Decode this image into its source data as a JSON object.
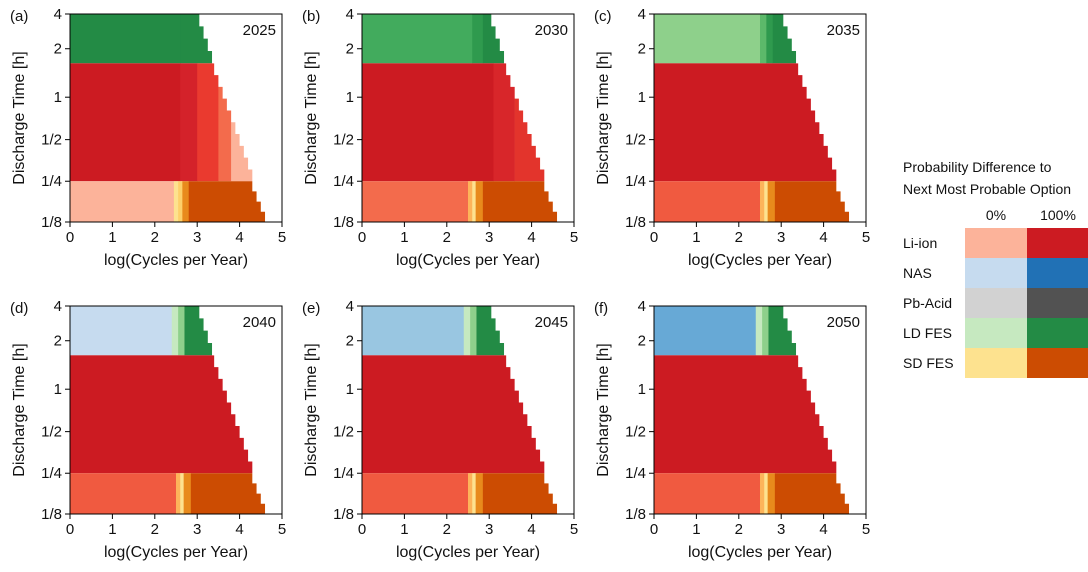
{
  "colors": {
    "li_ion_low": "#fcb39a",
    "li_ion_mid": "#f36b4c",
    "li_ion_high": "#cc1b22",
    "nas_low": "#c6dbef",
    "nas_mid": "#99c6e1",
    "nas_mid2": "#67a9d6",
    "nas_high": "#2171b5",
    "pb_low": "#d2d2d2",
    "pb_high": "#525252",
    "ld_low": "#c6e9c0",
    "ld_mid": "#8ed08b",
    "ld_mid2": "#42ab5d",
    "ld_high": "#238b45",
    "sd_low": "#fde28f",
    "sd_high": "#cc4c02"
  },
  "chart_data": [
    {
      "panel": "(a)",
      "year": "2025",
      "type": "heatmap",
      "xlabel": "log(Cycles per Year)",
      "ylabel": "Discharge Time [h]",
      "xlim": [
        0,
        5
      ],
      "xticks": [
        "0",
        "1",
        "2",
        "3",
        "4",
        "5"
      ],
      "yticks": [
        "4",
        "2",
        "1",
        "1/2",
        "1/4",
        "1/8"
      ],
      "rows": [
        {
          "technology": "LD FES",
          "range_h": "2-4",
          "x_end": [
            3.05,
            3.15,
            3.25,
            3.35
          ],
          "segments": [
            {
              "x0": 0,
              "x1": 2.6,
              "color": "#238b45"
            },
            {
              "x0": 2.6,
              "x1": 3.35,
              "color": "#238b45"
            }
          ]
        },
        {
          "technology": "Li-ion",
          "range_h": "1/4-2",
          "x_end": [
            3.4,
            3.5,
            3.6,
            3.7,
            3.8,
            3.9,
            4.0,
            4.1,
            4.2,
            4.3
          ],
          "segments": [
            {
              "x0": 0,
              "x1": 2.6,
              "color": "#cc1b22"
            },
            {
              "x0": 2.6,
              "x1": 3.0,
              "color": "#d4222a"
            },
            {
              "x0": 3.0,
              "x1": 3.5,
              "color": "#ea3a2f"
            },
            {
              "x0": 3.5,
              "x1": 3.8,
              "color": "#f36b4c"
            },
            {
              "x0": 3.8,
              "x1": 4.3,
              "color": "#fcb39a"
            }
          ]
        },
        {
          "technology": "Li-ion / SD FES",
          "range_h": "1/8-1/4",
          "x_end": [
            4.3,
            4.4,
            4.5,
            4.6
          ],
          "segments": [
            {
              "x0": 0,
              "x1": 2.45,
              "color": "#fcb39a"
            },
            {
              "x0": 2.45,
              "x1": 2.55,
              "color": "#fde28f"
            },
            {
              "x0": 2.55,
              "x1": 2.65,
              "color": "#fdd06a"
            },
            {
              "x0": 2.65,
              "x1": 2.8,
              "color": "#e88a1c"
            },
            {
              "x0": 2.8,
              "x1": 4.6,
              "color": "#cc4c02"
            }
          ]
        }
      ]
    },
    {
      "panel": "(b)",
      "year": "2030",
      "type": "heatmap",
      "xlabel": "log(Cycles per Year)",
      "ylabel": "Discharge Time [h]",
      "xlim": [
        0,
        5
      ],
      "xticks": [
        "0",
        "1",
        "2",
        "3",
        "4",
        "5"
      ],
      "yticks": [
        "4",
        "2",
        "1",
        "1/2",
        "1/4",
        "1/8"
      ],
      "rows": [
        {
          "technology": "LD FES",
          "range_h": "2-4",
          "x_end": [
            3.05,
            3.15,
            3.25,
            3.35
          ],
          "segments": [
            {
              "x0": 0,
              "x1": 2.6,
              "color": "#42ab5d"
            },
            {
              "x0": 2.6,
              "x1": 2.85,
              "color": "#2f9a4e"
            },
            {
              "x0": 2.85,
              "x1": 3.35,
              "color": "#238b45"
            }
          ]
        },
        {
          "technology": "Li-ion",
          "range_h": "1/4-2",
          "x_end": [
            3.4,
            3.5,
            3.6,
            3.7,
            3.8,
            3.9,
            4.0,
            4.1,
            4.2,
            4.3
          ],
          "segments": [
            {
              "x0": 0,
              "x1": 3.1,
              "color": "#cc1b22"
            },
            {
              "x0": 3.1,
              "x1": 3.6,
              "color": "#d8262a"
            },
            {
              "x0": 3.6,
              "x1": 4.3,
              "color": "#e3342c"
            }
          ]
        },
        {
          "technology": "Li-ion / SD FES",
          "range_h": "1/8-1/4",
          "x_end": [
            4.3,
            4.4,
            4.5,
            4.6
          ],
          "segments": [
            {
              "x0": 0,
              "x1": 2.5,
              "color": "#f36b4c"
            },
            {
              "x0": 2.5,
              "x1": 2.6,
              "color": "#fdb45a"
            },
            {
              "x0": 2.6,
              "x1": 2.68,
              "color": "#fde28f"
            },
            {
              "x0": 2.68,
              "x1": 2.85,
              "color": "#e88a1c"
            },
            {
              "x0": 2.85,
              "x1": 4.6,
              "color": "#cc4c02"
            }
          ]
        }
      ]
    },
    {
      "panel": "(c)",
      "year": "2035",
      "type": "heatmap",
      "xlabel": "log(Cycles per Year)",
      "ylabel": "Discharge Time [h]",
      "xlim": [
        0,
        5
      ],
      "xticks": [
        "0",
        "1",
        "2",
        "3",
        "4",
        "5"
      ],
      "yticks": [
        "4",
        "2",
        "1",
        "1/2",
        "1/4",
        "1/8"
      ],
      "rows": [
        {
          "technology": "LD FES",
          "range_h": "2-4",
          "x_end": [
            3.05,
            3.15,
            3.25,
            3.35
          ],
          "segments": [
            {
              "x0": 0,
              "x1": 2.5,
              "color": "#8ed08b"
            },
            {
              "x0": 2.5,
              "x1": 2.65,
              "color": "#5cb96a"
            },
            {
              "x0": 2.65,
              "x1": 2.8,
              "color": "#2f9a4e"
            },
            {
              "x0": 2.8,
              "x1": 3.35,
              "color": "#238b45"
            }
          ]
        },
        {
          "technology": "Li-ion",
          "range_h": "1/4-2",
          "x_end": [
            3.4,
            3.5,
            3.6,
            3.7,
            3.8,
            3.9,
            4.0,
            4.1,
            4.2,
            4.3
          ],
          "segments": [
            {
              "x0": 0,
              "x1": 4.3,
              "color": "#cc1b22"
            }
          ]
        },
        {
          "technology": "Li-ion / SD FES",
          "range_h": "1/8-1/4",
          "x_end": [
            4.3,
            4.4,
            4.5,
            4.6
          ],
          "segments": [
            {
              "x0": 0,
              "x1": 2.5,
              "color": "#f05a40"
            },
            {
              "x0": 2.5,
              "x1": 2.6,
              "color": "#fdb45a"
            },
            {
              "x0": 2.6,
              "x1": 2.68,
              "color": "#fde28f"
            },
            {
              "x0": 2.68,
              "x1": 2.85,
              "color": "#e88a1c"
            },
            {
              "x0": 2.85,
              "x1": 4.6,
              "color": "#cc4c02"
            }
          ]
        }
      ]
    },
    {
      "panel": "(d)",
      "year": "2040",
      "type": "heatmap",
      "xlabel": "log(Cycles per Year)",
      "ylabel": "Discharge Time [h]",
      "xlim": [
        0,
        5
      ],
      "xticks": [
        "0",
        "1",
        "2",
        "3",
        "4",
        "5"
      ],
      "yticks": [
        "4",
        "2",
        "1",
        "1/2",
        "1/4",
        "1/8"
      ],
      "rows": [
        {
          "technology": "NAS / LD FES",
          "range_h": "2-4",
          "x_end": [
            3.05,
            3.15,
            3.25,
            3.35
          ],
          "segments": [
            {
              "x0": 0,
              "x1": 2.4,
              "color": "#c6dbef"
            },
            {
              "x0": 2.4,
              "x1": 2.55,
              "color": "#c6e9c0"
            },
            {
              "x0": 2.55,
              "x1": 2.7,
              "color": "#8ed08b"
            },
            {
              "x0": 2.7,
              "x1": 3.35,
              "color": "#238b45"
            }
          ]
        },
        {
          "technology": "Li-ion",
          "range_h": "1/4-2",
          "x_end": [
            3.4,
            3.5,
            3.6,
            3.7,
            3.8,
            3.9,
            4.0,
            4.1,
            4.2,
            4.3
          ],
          "segments": [
            {
              "x0": 0,
              "x1": 4.3,
              "color": "#cc1b22"
            }
          ]
        },
        {
          "technology": "Li-ion / SD FES",
          "range_h": "1/8-1/4",
          "x_end": [
            4.3,
            4.4,
            4.5,
            4.6
          ],
          "segments": [
            {
              "x0": 0,
              "x1": 2.5,
              "color": "#f05a40"
            },
            {
              "x0": 2.5,
              "x1": 2.6,
              "color": "#fdb45a"
            },
            {
              "x0": 2.6,
              "x1": 2.68,
              "color": "#fde28f"
            },
            {
              "x0": 2.68,
              "x1": 2.85,
              "color": "#e88a1c"
            },
            {
              "x0": 2.85,
              "x1": 4.6,
              "color": "#cc4c02"
            }
          ]
        }
      ]
    },
    {
      "panel": "(e)",
      "year": "2045",
      "type": "heatmap",
      "xlabel": "log(Cycles per Year)",
      "ylabel": "Discharge Time [h]",
      "xlim": [
        0,
        5
      ],
      "xticks": [
        "0",
        "1",
        "2",
        "3",
        "4",
        "5"
      ],
      "yticks": [
        "4",
        "2",
        "1",
        "1/2",
        "1/4",
        "1/8"
      ],
      "rows": [
        {
          "technology": "NAS / LD FES",
          "range_h": "2-4",
          "x_end": [
            3.05,
            3.15,
            3.25,
            3.35
          ],
          "segments": [
            {
              "x0": 0,
              "x1": 2.4,
              "color": "#99c6e1"
            },
            {
              "x0": 2.4,
              "x1": 2.55,
              "color": "#c6e9c0"
            },
            {
              "x0": 2.55,
              "x1": 2.7,
              "color": "#8ed08b"
            },
            {
              "x0": 2.7,
              "x1": 3.35,
              "color": "#238b45"
            }
          ]
        },
        {
          "technology": "Li-ion",
          "range_h": "1/4-2",
          "x_end": [
            3.4,
            3.5,
            3.6,
            3.7,
            3.8,
            3.9,
            4.0,
            4.1,
            4.2,
            4.3
          ],
          "segments": [
            {
              "x0": 0,
              "x1": 4.3,
              "color": "#cc1b22"
            }
          ]
        },
        {
          "technology": "Li-ion / SD FES",
          "range_h": "1/8-1/4",
          "x_end": [
            4.3,
            4.4,
            4.5,
            4.6
          ],
          "segments": [
            {
              "x0": 0,
              "x1": 2.5,
              "color": "#f05a40"
            },
            {
              "x0": 2.5,
              "x1": 2.6,
              "color": "#fdb45a"
            },
            {
              "x0": 2.6,
              "x1": 2.68,
              "color": "#fde28f"
            },
            {
              "x0": 2.68,
              "x1": 2.85,
              "color": "#e88a1c"
            },
            {
              "x0": 2.85,
              "x1": 4.6,
              "color": "#cc4c02"
            }
          ]
        }
      ]
    },
    {
      "panel": "(f)",
      "year": "2050",
      "type": "heatmap",
      "xlabel": "log(Cycles per Year)",
      "ylabel": "Discharge Time [h]",
      "xlim": [
        0,
        5
      ],
      "xticks": [
        "0",
        "1",
        "2",
        "3",
        "4",
        "5"
      ],
      "yticks": [
        "4",
        "2",
        "1",
        "1/2",
        "1/4",
        "1/8"
      ],
      "rows": [
        {
          "technology": "NAS / LD FES",
          "range_h": "2-4",
          "x_end": [
            3.05,
            3.15,
            3.25,
            3.35
          ],
          "segments": [
            {
              "x0": 0,
              "x1": 2.4,
              "color": "#67a9d6"
            },
            {
              "x0": 2.4,
              "x1": 2.55,
              "color": "#c6e9c0"
            },
            {
              "x0": 2.55,
              "x1": 2.7,
              "color": "#8ed08b"
            },
            {
              "x0": 2.7,
              "x1": 3.35,
              "color": "#238b45"
            }
          ]
        },
        {
          "technology": "Li-ion",
          "range_h": "1/4-2",
          "x_end": [
            3.4,
            3.5,
            3.6,
            3.7,
            3.8,
            3.9,
            4.0,
            4.1,
            4.2,
            4.3
          ],
          "segments": [
            {
              "x0": 0,
              "x1": 4.3,
              "color": "#cc1b22"
            }
          ]
        },
        {
          "technology": "Li-ion / SD FES",
          "range_h": "1/8-1/4",
          "x_end": [
            4.3,
            4.4,
            4.5,
            4.6
          ],
          "segments": [
            {
              "x0": 0,
              "x1": 2.5,
              "color": "#f05a40"
            },
            {
              "x0": 2.5,
              "x1": 2.6,
              "color": "#fdb45a"
            },
            {
              "x0": 2.6,
              "x1": 2.68,
              "color": "#fde28f"
            },
            {
              "x0": 2.68,
              "x1": 2.85,
              "color": "#e88a1c"
            },
            {
              "x0": 2.85,
              "x1": 4.6,
              "color": "#cc4c02"
            }
          ]
        }
      ]
    }
  ],
  "legend": {
    "title_line1": "Probability Difference to",
    "title_line2": "Next Most Probable Option",
    "col_low": "0%",
    "col_high": "100%",
    "items": [
      {
        "label": "Li-ion",
        "low": "#fcb39a",
        "high": "#cc1b22"
      },
      {
        "label": "NAS",
        "low": "#c6dbef",
        "high": "#2171b5"
      },
      {
        "label": "Pb-Acid",
        "low": "#d2d2d2",
        "high": "#525252"
      },
      {
        "label": "LD FES",
        "low": "#c6e9c0",
        "high": "#238b45"
      },
      {
        "label": "SD FES",
        "low": "#fde28f",
        "high": "#cc4c02"
      }
    ]
  }
}
